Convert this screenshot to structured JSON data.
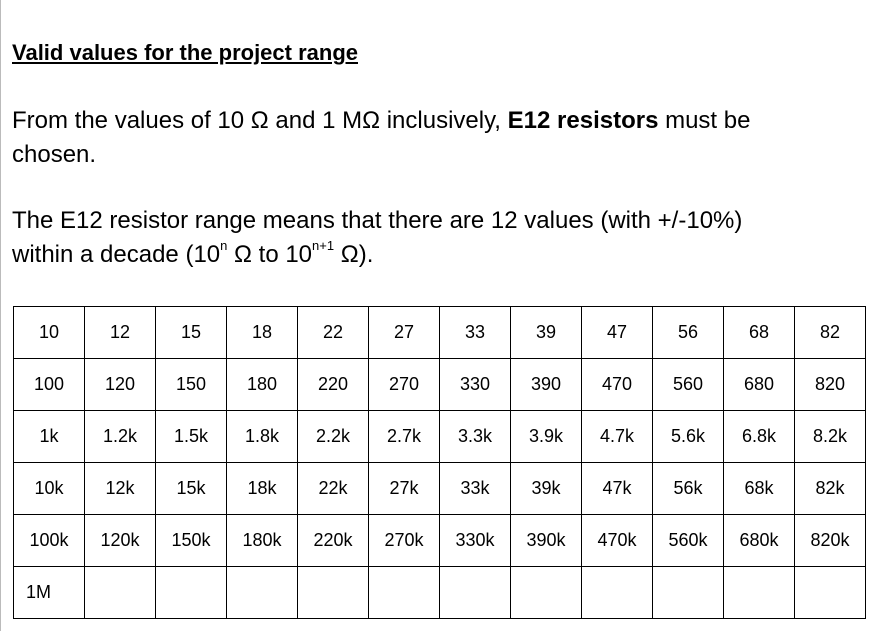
{
  "heading": "Valid values for the project range",
  "paragraph_1": {
    "text_a": "From the values of 10 Ω and 1 MΩ inclusively, ",
    "bold": "E12 resistors",
    "text_b": " must be",
    "text_c": "chosen."
  },
  "paragraph_2": {
    "line_1": "The E12 resistor range means that there are 12 values (with +/-10%)",
    "text_a": "within a decade (10",
    "sup_a": "n",
    "text_b": " Ω to 10",
    "sup_b": "n+1",
    "text_c": " Ω)."
  },
  "table": {
    "rows": [
      [
        "10",
        "12",
        "15",
        "18",
        "22",
        "27",
        "33",
        "39",
        "47",
        "56",
        "68",
        "82"
      ],
      [
        "100",
        "120",
        "150",
        "180",
        "220",
        "270",
        "330",
        "390",
        "470",
        "560",
        "680",
        "820"
      ],
      [
        "1k",
        "1.2k",
        "1.5k",
        "1.8k",
        "2.2k",
        "2.7k",
        "3.3k",
        "3.9k",
        "4.7k",
        "5.6k",
        "6.8k",
        "8.2k"
      ],
      [
        "10k",
        "12k",
        "15k",
        "18k",
        "22k",
        "27k",
        "33k",
        "39k",
        "47k",
        "56k",
        "68k",
        "82k"
      ],
      [
        "100k",
        "120k",
        "150k",
        "180k",
        "220k",
        "270k",
        "330k",
        "390k",
        "470k",
        "560k",
        "680k",
        "820k"
      ],
      [
        "1M"
      ]
    ]
  }
}
